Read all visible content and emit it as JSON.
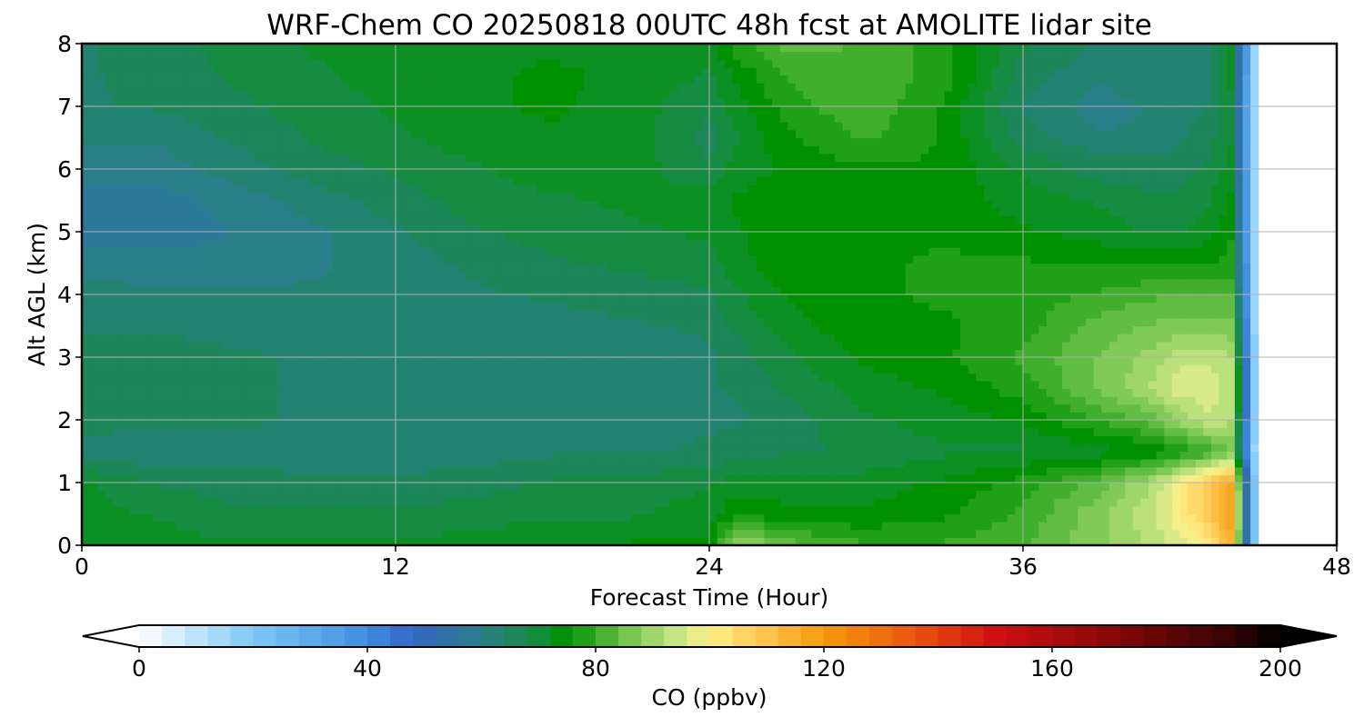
{
  "chart_data": {
    "type": "heatmap",
    "title": "WRF-Chem CO  20250818 00UTC 48h fcst at AMOLITE lidar site",
    "xlabel": "Forecast Time (Hour)",
    "ylabel": "Alt AGL (km)",
    "xlim": [
      0,
      48
    ],
    "ylim": [
      0,
      8
    ],
    "x_ticks": [
      0,
      12,
      24,
      36,
      48
    ],
    "y_ticks": [
      0,
      1,
      2,
      3,
      4,
      5,
      6,
      7,
      8
    ],
    "grid": true,
    "data_end_hour": 45,
    "x_hours": [
      0,
      3,
      6,
      9,
      12,
      15,
      18,
      21,
      24,
      25,
      27,
      30,
      33,
      36,
      39,
      41,
      42,
      43,
      44
    ],
    "alt_km": [
      0,
      0.5,
      1,
      1.5,
      2,
      2.5,
      3,
      3.5,
      4,
      4.5,
      5,
      5.5,
      6,
      6.5,
      7,
      7.5,
      8
    ],
    "co_ppbv": [
      [
        72,
        72,
        71,
        71,
        71,
        72,
        73,
        74,
        74,
        90,
        84,
        80,
        80,
        82,
        88,
        92,
        96,
        100,
        115
      ],
      [
        72,
        70,
        68,
        68,
        68,
        69,
        70,
        70,
        72,
        76,
        74,
        74,
        76,
        80,
        88,
        94,
        100,
        108,
        118
      ],
      [
        71,
        67,
        66,
        65,
        65,
        66,
        68,
        69,
        70,
        72,
        72,
        72,
        74,
        78,
        84,
        92,
        100,
        108,
        116
      ],
      [
        63,
        62,
        63,
        63,
        63,
        63,
        64,
        64,
        65,
        66,
        67,
        68,
        70,
        70,
        72,
        74,
        76,
        80,
        86
      ],
      [
        66,
        65,
        65,
        64,
        63,
        63,
        64,
        64,
        64,
        64,
        66,
        70,
        72,
        74,
        80,
        84,
        90,
        94,
        92
      ],
      [
        66,
        66,
        65,
        64,
        63,
        63,
        63,
        64,
        64,
        65,
        68,
        72,
        74,
        78,
        86,
        92,
        96,
        96,
        94
      ],
      [
        66,
        66,
        65,
        64,
        63,
        63,
        63,
        63,
        64,
        66,
        70,
        74,
        76,
        80,
        86,
        90,
        94,
        94,
        92
      ],
      [
        64,
        64,
        63,
        63,
        63,
        63,
        63,
        64,
        65,
        68,
        72,
        76,
        76,
        78,
        84,
        86,
        86,
        86,
        86
      ],
      [
        63,
        62,
        62,
        62,
        63,
        64,
        65,
        66,
        67,
        70,
        74,
        76,
        77,
        78,
        80,
        82,
        82,
        82,
        82
      ],
      [
        60,
        60,
        60,
        61,
        63,
        65,
        67,
        68,
        69,
        72,
        76,
        76,
        77,
        77,
        76,
        76,
        76,
        76,
        78
      ],
      [
        56,
        56,
        59,
        61,
        64,
        67,
        69,
        70,
        71,
        73,
        76,
        76,
        76,
        74,
        72,
        70,
        70,
        72,
        76
      ],
      [
        57,
        57,
        60,
        63,
        66,
        69,
        70,
        71,
        72,
        74,
        75,
        76,
        75,
        72,
        70,
        68,
        68,
        70,
        74
      ],
      [
        60,
        60,
        63,
        66,
        68,
        70,
        72,
        72,
        68,
        72,
        74,
        76,
        76,
        70,
        66,
        66,
        66,
        68,
        72
      ],
      [
        62,
        62,
        65,
        68,
        70,
        72,
        73,
        72,
        66,
        70,
        76,
        80,
        76,
        66,
        62,
        62,
        64,
        66,
        70
      ],
      [
        64,
        65,
        67,
        69,
        71,
        73,
        74,
        72,
        68,
        72,
        78,
        82,
        76,
        64,
        60,
        62,
        64,
        64,
        70
      ],
      [
        64,
        66,
        68,
        70,
        72,
        73,
        74,
        73,
        70,
        74,
        80,
        82,
        78,
        66,
        62,
        64,
        64,
        64,
        72
      ],
      [
        64,
        66,
        69,
        71,
        72,
        73,
        73,
        72,
        72,
        78,
        84,
        82,
        78,
        68,
        64,
        64,
        64,
        64,
        72
      ]
    ],
    "colorbar": {
      "label": "CO  (ppbv)",
      "min": 0,
      "max": 200,
      "ticks": [
        0,
        40,
        80,
        120,
        160,
        200
      ],
      "extend": "both",
      "color_stops": [
        {
          "v": 0,
          "c": "#ffffff"
        },
        {
          "v": 20,
          "c": "#7dc8f5"
        },
        {
          "v": 40,
          "c": "#3e8ee0"
        },
        {
          "v": 48,
          "c": "#3366c2"
        },
        {
          "v": 60,
          "c": "#2a7e8a"
        },
        {
          "v": 70,
          "c": "#148d3a"
        },
        {
          "v": 75,
          "c": "#009100"
        },
        {
          "v": 85,
          "c": "#6cc24a"
        },
        {
          "v": 95,
          "c": "#cfe98a"
        },
        {
          "v": 100,
          "c": "#fff08a"
        },
        {
          "v": 110,
          "c": "#ffc24a"
        },
        {
          "v": 120,
          "c": "#f59a0a"
        },
        {
          "v": 135,
          "c": "#ea5a10"
        },
        {
          "v": 150,
          "c": "#d01010"
        },
        {
          "v": 170,
          "c": "#8a0808"
        },
        {
          "v": 190,
          "c": "#3a0404"
        },
        {
          "v": 200,
          "c": "#000000"
        }
      ]
    }
  }
}
